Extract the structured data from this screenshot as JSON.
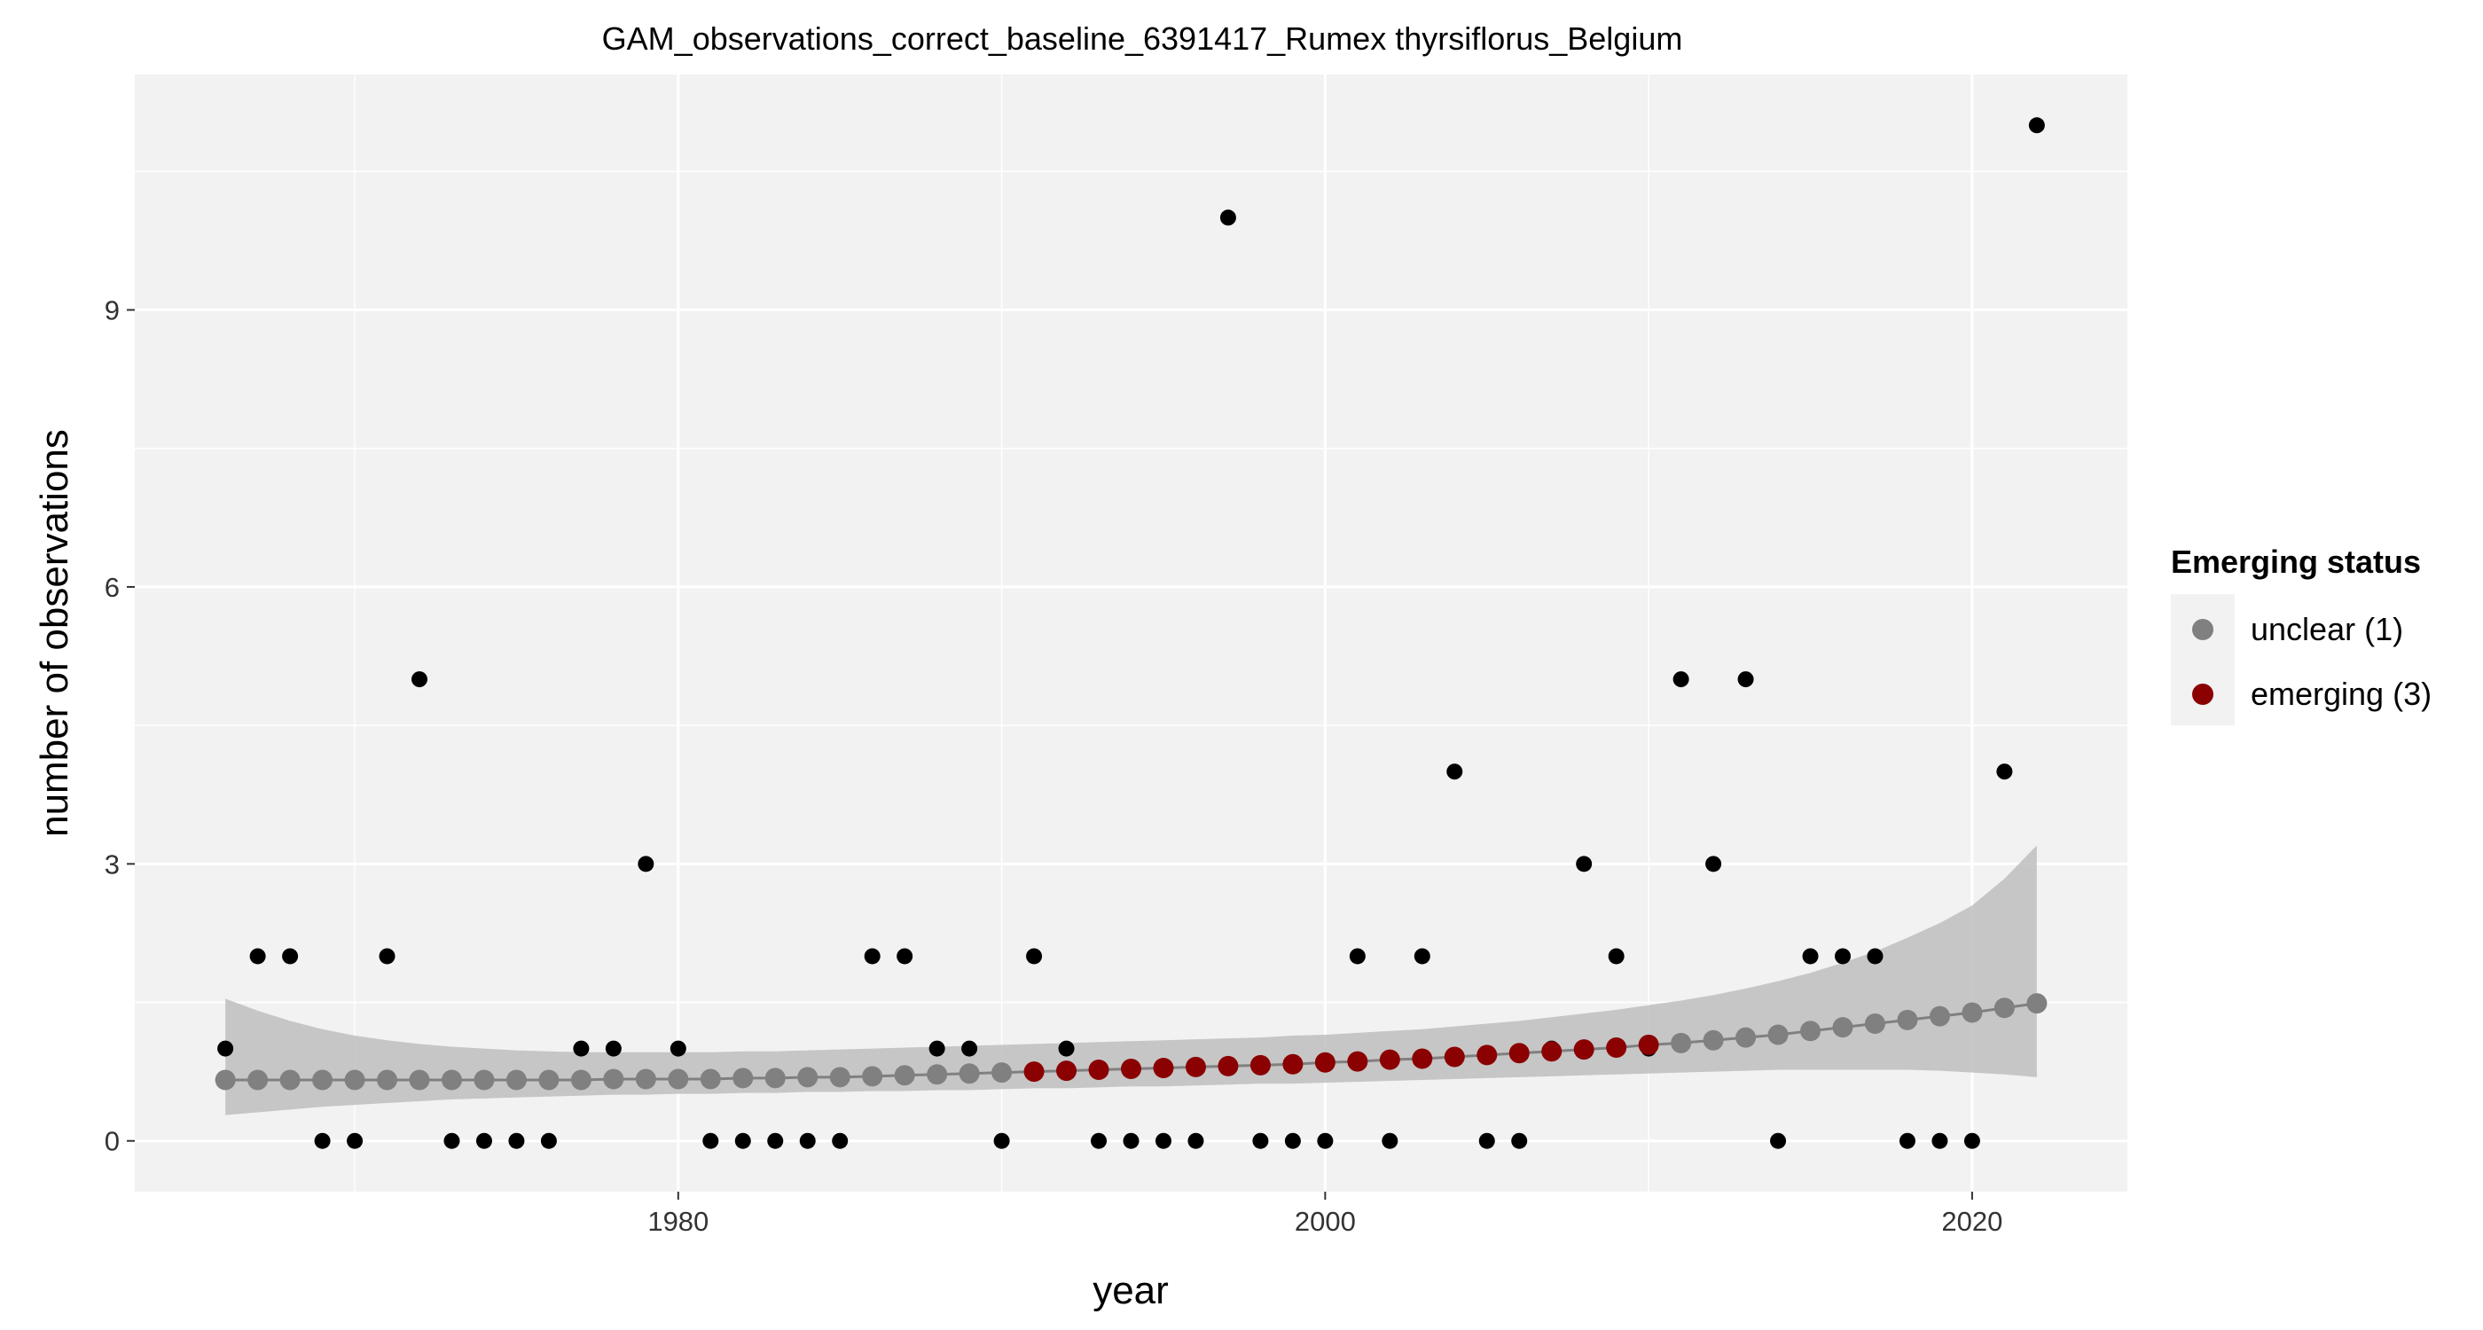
{
  "chart_data": {
    "type": "scatter",
    "title": "GAM_observations_correct_baseline_6391417_Rumex thyrsiflorus_Belgium",
    "xlabel": "year",
    "ylabel": "number of observations",
    "xlim": [
      1963.2,
      2024.8
    ],
    "ylim": [
      -0.55,
      11.55
    ],
    "x_ticks": [
      1980,
      2000,
      2020
    ],
    "y_ticks": [
      0,
      3,
      6,
      9
    ],
    "grid": true,
    "legend": {
      "title": "Emerging status",
      "placement": "right",
      "entries": [
        {
          "label": "unclear (1)",
          "color": "#808080"
        },
        {
          "label": "emerging (3)",
          "color": "#8b0000"
        }
      ]
    },
    "colors": {
      "panel": "#f2f2f2",
      "grid": "#ffffff",
      "band": "#bebebe",
      "fit_line": "#808080",
      "observed": "#000000",
      "unclear": "#808080",
      "emerging": "#8b0000"
    },
    "observed": {
      "x": [
        1966,
        1967,
        1968,
        1969,
        1970,
        1971,
        1972,
        1973,
        1974,
        1975,
        1976,
        1977,
        1978,
        1979,
        1980,
        1981,
        1982,
        1983,
        1984,
        1985,
        1986,
        1987,
        1988,
        1989,
        1990,
        1991,
        1992,
        1993,
        1994,
        1995,
        1996,
        1997,
        1998,
        1999,
        2000,
        2001,
        2002,
        2003,
        2004,
        2005,
        2006,
        2007,
        2008,
        2009,
        2010,
        2011,
        2012,
        2013,
        2014,
        2015,
        2016,
        2017,
        2018,
        2019,
        2020,
        2021,
        2022
      ],
      "y": [
        1,
        2,
        2,
        0,
        0,
        2,
        5,
        0,
        0,
        0,
        0,
        1,
        1,
        3,
        1,
        0,
        0,
        0,
        0,
        0,
        2,
        2,
        1,
        1,
        0,
        2,
        1,
        0,
        0,
        0,
        0,
        10,
        0,
        0,
        0,
        2,
        0,
        2,
        4,
        0,
        0,
        1,
        3,
        2,
        1,
        5,
        3,
        5,
        0,
        2,
        2,
        2,
        0,
        0,
        0,
        4,
        11
      ]
    },
    "fitted": {
      "x": [
        1966,
        1967,
        1968,
        1969,
        1970,
        1971,
        1972,
        1973,
        1974,
        1975,
        1976,
        1977,
        1978,
        1979,
        1980,
        1981,
        1982,
        1983,
        1984,
        1985,
        1986,
        1987,
        1988,
        1989,
        1990,
        1991,
        1992,
        1993,
        1994,
        1995,
        1996,
        1997,
        1998,
        1999,
        2000,
        2001,
        2002,
        2003,
        2004,
        2005,
        2006,
        2007,
        2008,
        2009,
        2010,
        2011,
        2012,
        2013,
        2014,
        2015,
        2016,
        2017,
        2018,
        2019,
        2020,
        2021,
        2022
      ],
      "y": [
        0.66,
        0.66,
        0.66,
        0.66,
        0.66,
        0.66,
        0.66,
        0.66,
        0.66,
        0.66,
        0.66,
        0.66,
        0.67,
        0.67,
        0.67,
        0.67,
        0.68,
        0.68,
        0.69,
        0.69,
        0.7,
        0.71,
        0.72,
        0.73,
        0.74,
        0.75,
        0.76,
        0.77,
        0.78,
        0.79,
        0.8,
        0.81,
        0.82,
        0.83,
        0.85,
        0.86,
        0.88,
        0.89,
        0.91,
        0.93,
        0.95,
        0.97,
        0.99,
        1.01,
        1.04,
        1.06,
        1.09,
        1.12,
        1.15,
        1.19,
        1.23,
        1.27,
        1.31,
        1.35,
        1.39,
        1.44,
        1.49
      ],
      "lower": [
        0.28,
        0.31,
        0.34,
        0.37,
        0.39,
        0.41,
        0.43,
        0.45,
        0.46,
        0.47,
        0.48,
        0.49,
        0.5,
        0.5,
        0.51,
        0.51,
        0.52,
        0.52,
        0.53,
        0.53,
        0.54,
        0.54,
        0.55,
        0.55,
        0.56,
        0.57,
        0.57,
        0.58,
        0.59,
        0.59,
        0.6,
        0.61,
        0.62,
        0.62,
        0.63,
        0.64,
        0.65,
        0.66,
        0.67,
        0.68,
        0.69,
        0.7,
        0.71,
        0.72,
        0.73,
        0.74,
        0.75,
        0.76,
        0.77,
        0.77,
        0.77,
        0.77,
        0.77,
        0.76,
        0.74,
        0.72,
        0.69
      ],
      "upper": [
        1.54,
        1.41,
        1.3,
        1.21,
        1.14,
        1.09,
        1.05,
        1.02,
        1.0,
        0.98,
        0.97,
        0.96,
        0.96,
        0.96,
        0.96,
        0.96,
        0.97,
        0.97,
        0.98,
        0.99,
        1.0,
        1.01,
        1.02,
        1.03,
        1.04,
        1.05,
        1.06,
        1.07,
        1.08,
        1.09,
        1.1,
        1.11,
        1.12,
        1.14,
        1.15,
        1.17,
        1.19,
        1.21,
        1.24,
        1.27,
        1.3,
        1.34,
        1.38,
        1.42,
        1.47,
        1.52,
        1.58,
        1.65,
        1.73,
        1.82,
        1.93,
        2.05,
        2.2,
        2.36,
        2.55,
        2.84,
        3.2
      ],
      "status": [
        1,
        1,
        1,
        1,
        1,
        1,
        1,
        1,
        1,
        1,
        1,
        1,
        1,
        1,
        1,
        1,
        1,
        1,
        1,
        1,
        1,
        1,
        1,
        1,
        1,
        3,
        3,
        3,
        3,
        3,
        3,
        3,
        3,
        3,
        3,
        3,
        3,
        3,
        3,
        3,
        3,
        3,
        3,
        3,
        3,
        1,
        1,
        1,
        1,
        1,
        1,
        1,
        1,
        1,
        1,
        1,
        1
      ]
    }
  }
}
